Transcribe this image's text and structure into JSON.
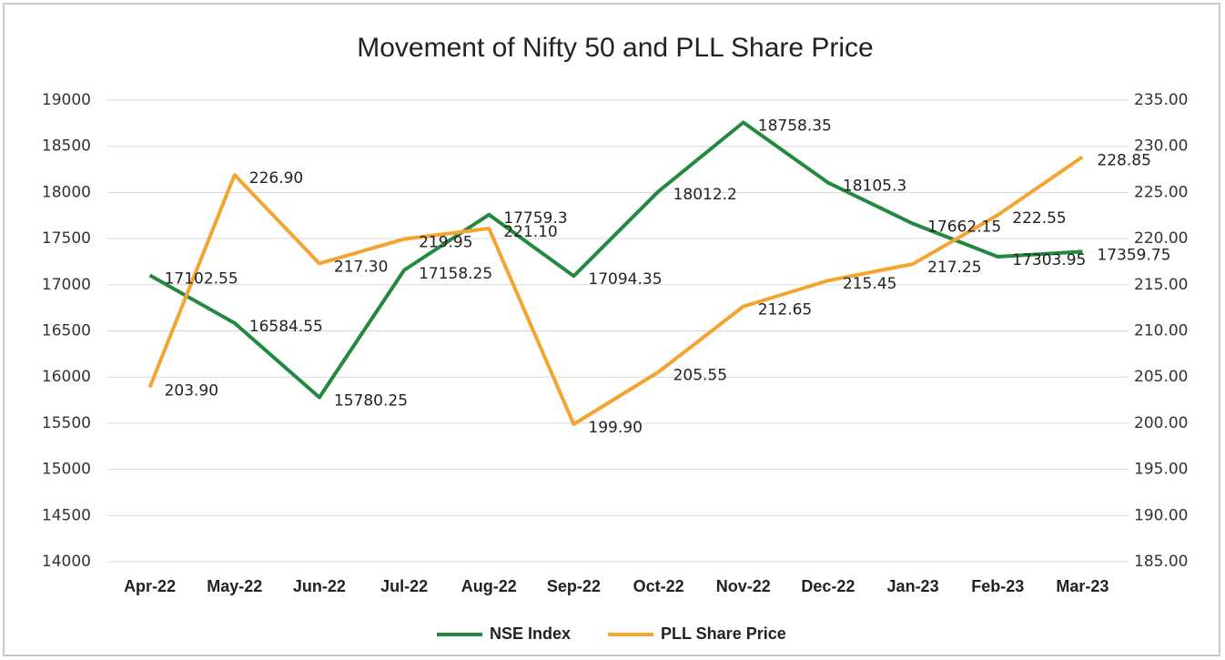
{
  "chart_data": {
    "type": "line",
    "title": "Movement of Nifty 50 and PLL Share Price",
    "categories": [
      "Apr-22",
      "May-22",
      "Jun-22",
      "Jul-22",
      "Aug-22",
      "Sep-22",
      "Oct-22",
      "Nov-22",
      "Dec-22",
      "Jan-23",
      "Feb-23",
      "Mar-23"
    ],
    "series": [
      {
        "name": "NSE Index",
        "color": "#23893f",
        "values": [
          17102.55,
          16584.55,
          15780.25,
          17158.25,
          17759.3,
          17094.35,
          18012.2,
          18758.35,
          18105.3,
          17662.15,
          17303.95,
          17359.75
        ]
      },
      {
        "name": "PLL Share Price",
        "color": "#f4a531",
        "axis": "y2",
        "values": [
          203.9,
          226.9,
          217.3,
          219.95,
          221.1,
          199.9,
          205.55,
          212.65,
          215.45,
          217.25,
          222.55,
          228.85
        ],
        "value_labels": [
          "203.90",
          "226.90",
          "217.30",
          "219.95",
          "221.10",
          "199.90",
          "205.55",
          "212.65",
          "215.45",
          "217.25",
          "222.55",
          "228.85"
        ]
      }
    ],
    "ylim": [
      14000,
      19000
    ],
    "yticks": [
      14000,
      14500,
      15000,
      15500,
      16000,
      16500,
      17000,
      17500,
      18000,
      18500,
      19000
    ],
    "y2lim": [
      185,
      235
    ],
    "y2ticks": [
      {
        "value": 185,
        "label": "185.00"
      },
      {
        "value": 190,
        "label": "190.00"
      },
      {
        "value": 195,
        "label": "195.00"
      },
      {
        "value": 200,
        "label": "200.00"
      },
      {
        "value": 205,
        "label": "205.00"
      },
      {
        "value": 210,
        "label": "210.00"
      },
      {
        "value": 215,
        "label": "215.00"
      },
      {
        "value": 220,
        "label": "220.00"
      },
      {
        "value": 225,
        "label": "225.00"
      },
      {
        "value": 230,
        "label": "230.00"
      },
      {
        "value": 235,
        "label": "235.00"
      }
    ],
    "grid": true,
    "legend": "bottom"
  }
}
